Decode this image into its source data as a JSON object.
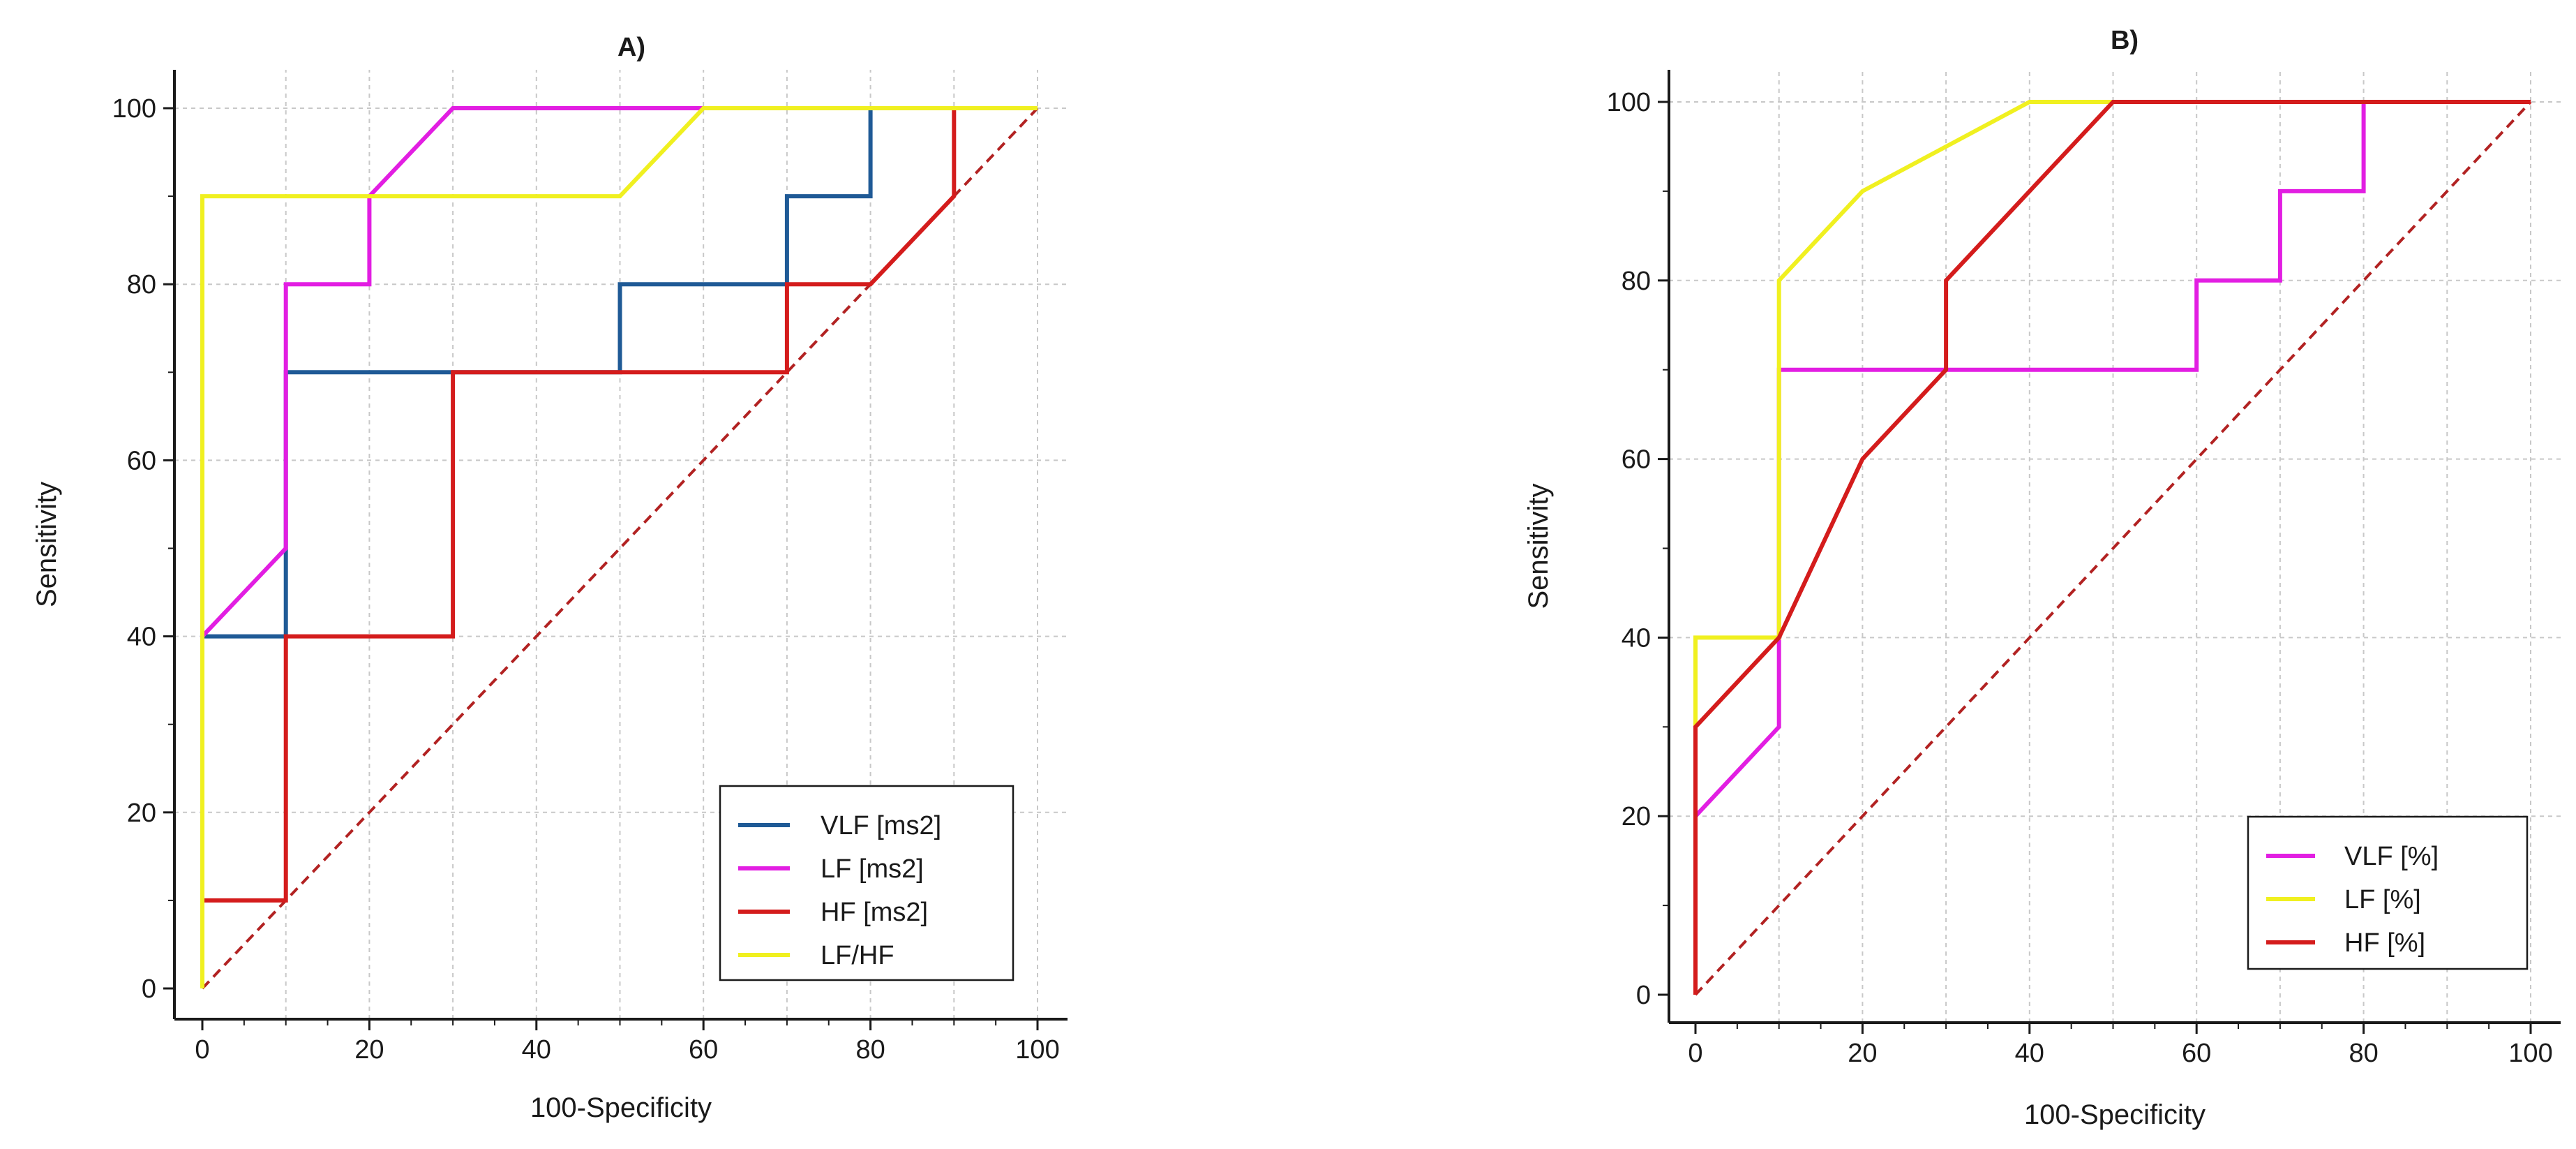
{
  "chart_data": [
    {
      "type": "line",
      "title": "A)",
      "xlabel": "100-Specificity",
      "ylabel": "Sensitivity",
      "xlim": [
        0,
        100
      ],
      "ylim": [
        0,
        100
      ],
      "x_ticks": [
        0,
        20,
        40,
        60,
        80,
        100
      ],
      "y_ticks": [
        0,
        20,
        40,
        60,
        80,
        100
      ],
      "x_tick_labels": [
        "0",
        "20",
        "40",
        "60",
        "80",
        "100"
      ],
      "y_tick_labels": [
        "0",
        "20",
        "40",
        "60",
        "80",
        "100"
      ],
      "grid": true,
      "legend_position": "bottom-right",
      "reference_line": {
        "x": [
          0,
          100
        ],
        "y": [
          0,
          100
        ],
        "color": "#b22222",
        "style": "dashed"
      },
      "series": [
        {
          "name": "VLF [ms2]",
          "color": "#1f5a96",
          "x": [
            0,
            0,
            10,
            10,
            30,
            50,
            50,
            70,
            70,
            80,
            80,
            100
          ],
          "y": [
            0,
            40,
            40,
            70,
            70,
            70,
            80,
            80,
            90,
            90,
            100,
            100
          ]
        },
        {
          "name": "LF [ms2]",
          "color": "#e21ee2",
          "x": [
            0,
            0,
            10,
            10,
            20,
            20,
            30,
            100
          ],
          "y": [
            0,
            40,
            50,
            80,
            80,
            90,
            100,
            100
          ]
        },
        {
          "name": "HF [ms2]",
          "color": "#d41c1c",
          "x": [
            0,
            0,
            10,
            10,
            30,
            30,
            70,
            70,
            80,
            90,
            90,
            100
          ],
          "y": [
            0,
            10,
            10,
            40,
            40,
            70,
            70,
            80,
            80,
            90,
            100,
            100
          ]
        },
        {
          "name": "LF/HF",
          "color": "#f0f020",
          "x": [
            0,
            0,
            20,
            50,
            60,
            100
          ],
          "y": [
            0,
            90,
            90,
            90,
            100,
            100
          ]
        }
      ]
    },
    {
      "type": "line",
      "title": "B)",
      "xlabel": "100-Specificity",
      "ylabel": "Sensitivity",
      "xlim": [
        0,
        100
      ],
      "ylim": [
        0,
        100
      ],
      "x_ticks": [
        0,
        20,
        40,
        60,
        80,
        100
      ],
      "y_ticks": [
        0,
        20,
        40,
        60,
        80,
        100
      ],
      "x_tick_labels": [
        "0",
        "20",
        "40",
        "60",
        "80",
        "100"
      ],
      "y_tick_labels": [
        "0",
        "20",
        "40",
        "60",
        "80",
        "100"
      ],
      "grid": true,
      "legend_position": "bottom-right",
      "reference_line": {
        "x": [
          0,
          100
        ],
        "y": [
          0,
          100
        ],
        "color": "#b22222",
        "style": "dashed"
      },
      "series": [
        {
          "name": "VLF [%]",
          "color": "#e21ee2",
          "x": [
            0,
            0,
            10,
            10,
            60,
            60,
            70,
            70,
            80,
            80,
            100
          ],
          "y": [
            0,
            20,
            30,
            70,
            70,
            80,
            80,
            90,
            90,
            100,
            100
          ]
        },
        {
          "name": "LF [%]",
          "color": "#f0f020",
          "x": [
            0,
            0,
            10,
            10,
            20,
            30,
            40,
            100
          ],
          "y": [
            30,
            40,
            40,
            80,
            90,
            95,
            100,
            100
          ]
        },
        {
          "name": "HF [%]",
          "color": "#d41c1c",
          "x": [
            0,
            0,
            10,
            20,
            30,
            30,
            40,
            50,
            100
          ],
          "y": [
            0,
            30,
            40,
            60,
            70,
            80,
            90,
            100,
            100
          ]
        }
      ]
    }
  ]
}
